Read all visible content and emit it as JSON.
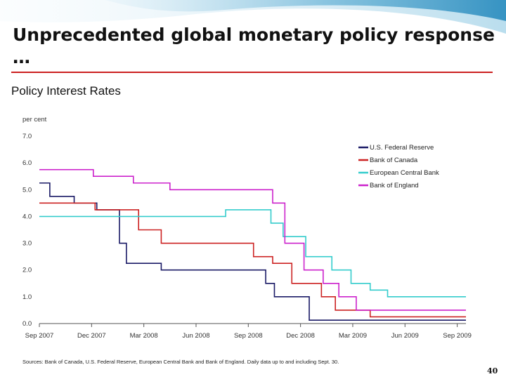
{
  "slide": {
    "title": "Unprecedented global monetary policy response …",
    "subtitle": "Policy Interest Rates",
    "source_note": "Sources: Bank of Canada, U.S. Federal Reserve, European Central Bank and Bank of England. Daily data up to and including Sept. 30.",
    "page_number": "40",
    "accent_color": "#cc1f1f",
    "swoosh_color": "#6eb6d8"
  },
  "chart_data": {
    "type": "line",
    "step": true,
    "title": "",
    "ylabel": "per cent",
    "xlabel": "",
    "ylim": [
      0,
      7
    ],
    "yticks": [
      "0.0",
      "1.0",
      "2.0",
      "3.0",
      "4.0",
      "5.0",
      "6.0",
      "7.0"
    ],
    "xlim": [
      0,
      24.5
    ],
    "xticks": [
      {
        "label": "Sep 2007",
        "value": 0
      },
      {
        "label": "Dec 2007",
        "value": 3
      },
      {
        "label": "Mar 2008",
        "value": 6
      },
      {
        "label": "Jun 2008",
        "value": 9
      },
      {
        "label": "Sep 2008",
        "value": 12
      },
      {
        "label": "Dec 2008",
        "value": 15
      },
      {
        "label": "Mar 2009",
        "value": 18
      },
      {
        "label": "Jun 2009",
        "value": 21
      },
      {
        "label": "Sep 2009",
        "value": 24
      }
    ],
    "legend_position": "top-right",
    "series": [
      {
        "name": "U.S. Federal Reserve",
        "color": "#1a1a66",
        "points": [
          [
            0,
            5.25
          ],
          [
            0.6,
            4.75
          ],
          [
            2.0,
            4.5
          ],
          [
            3.3,
            4.25
          ],
          [
            4.6,
            3.0
          ],
          [
            5.0,
            2.25
          ],
          [
            7.0,
            2.0
          ],
          [
            13.0,
            1.5
          ],
          [
            13.5,
            1.0
          ],
          [
            15.5,
            0.125
          ],
          [
            24.5,
            0.125
          ]
        ]
      },
      {
        "name": "Bank of Canada",
        "color": "#cc2222",
        "points": [
          [
            0,
            4.5
          ],
          [
            3.2,
            4.25
          ],
          [
            5.7,
            3.5
          ],
          [
            7.0,
            3.0
          ],
          [
            12.3,
            2.5
          ],
          [
            13.4,
            2.25
          ],
          [
            14.5,
            1.5
          ],
          [
            16.2,
            1.0
          ],
          [
            17.0,
            0.5
          ],
          [
            19.0,
            0.25
          ],
          [
            24.5,
            0.25
          ]
        ]
      },
      {
        "name": "European Central Bank",
        "color": "#33cccc",
        "points": [
          [
            0,
            4.0
          ],
          [
            10.7,
            4.25
          ],
          [
            13.3,
            3.75
          ],
          [
            14.0,
            3.25
          ],
          [
            15.3,
            2.5
          ],
          [
            16.8,
            2.0
          ],
          [
            17.9,
            1.5
          ],
          [
            19.0,
            1.25
          ],
          [
            20.0,
            1.0
          ],
          [
            24.5,
            1.0
          ]
        ]
      },
      {
        "name": "Bank of England",
        "color": "#cc22cc",
        "points": [
          [
            0,
            5.75
          ],
          [
            3.1,
            5.5
          ],
          [
            5.4,
            5.25
          ],
          [
            7.5,
            5.0
          ],
          [
            13.4,
            4.5
          ],
          [
            14.1,
            3.0
          ],
          [
            15.2,
            2.0
          ],
          [
            16.3,
            1.5
          ],
          [
            17.2,
            1.0
          ],
          [
            18.2,
            0.5
          ],
          [
            24.5,
            0.5
          ]
        ]
      }
    ]
  }
}
